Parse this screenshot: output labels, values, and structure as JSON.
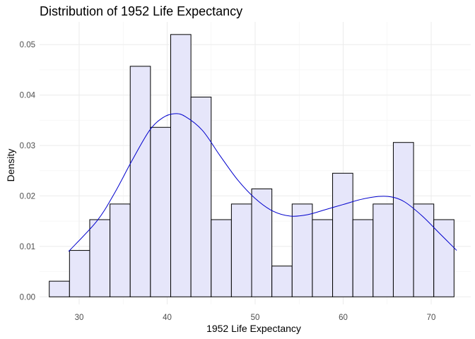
{
  "chart_data": {
    "type": "histogram",
    "title": "Distribution of 1952 Life Expectancy",
    "xlabel": "1952 Life Expectancy",
    "ylabel": "Density",
    "xlim": [
      25.5,
      74.5
    ],
    "ylim": [
      -0.0015,
      0.0545
    ],
    "x_ticks": [
      30,
      40,
      50,
      60,
      70
    ],
    "y_ticks": [
      0.0,
      0.01,
      0.02,
      0.03,
      0.04,
      0.05
    ],
    "y_tick_labels": [
      "0.00",
      "0.01",
      "0.02",
      "0.03",
      "0.04",
      "0.05"
    ],
    "grid": true,
    "bins": [
      {
        "x0": 26.6,
        "x1": 28.9,
        "density": 0.0031
      },
      {
        "x0": 28.9,
        "x1": 31.2,
        "density": 0.0092
      },
      {
        "x0": 31.2,
        "x1": 33.5,
        "density": 0.0153
      },
      {
        "x0": 33.5,
        "x1": 35.8,
        "density": 0.0184
      },
      {
        "x0": 35.8,
        "x1": 38.1,
        "density": 0.0457
      },
      {
        "x0": 38.1,
        "x1": 40.4,
        "density": 0.0336
      },
      {
        "x0": 40.4,
        "x1": 42.7,
        "density": 0.052
      },
      {
        "x0": 42.7,
        "x1": 45.0,
        "density": 0.0396
      },
      {
        "x0": 45.0,
        "x1": 47.3,
        "density": 0.0153
      },
      {
        "x0": 47.3,
        "x1": 49.6,
        "density": 0.0184
      },
      {
        "x0": 49.6,
        "x1": 51.9,
        "density": 0.0214
      },
      {
        "x0": 51.9,
        "x1": 54.2,
        "density": 0.0061
      },
      {
        "x0": 54.2,
        "x1": 56.5,
        "density": 0.0184
      },
      {
        "x0": 56.5,
        "x1": 58.8,
        "density": 0.0153
      },
      {
        "x0": 58.8,
        "x1": 61.1,
        "density": 0.0245
      },
      {
        "x0": 61.1,
        "x1": 63.4,
        "density": 0.0153
      },
      {
        "x0": 63.4,
        "x1": 65.7,
        "density": 0.0184
      },
      {
        "x0": 65.7,
        "x1": 68.0,
        "density": 0.0306
      },
      {
        "x0": 68.0,
        "x1": 70.3,
        "density": 0.0184
      },
      {
        "x0": 70.3,
        "x1": 72.6,
        "density": 0.0153
      }
    ],
    "density_curve": [
      {
        "x": 28.8,
        "y": 0.009
      },
      {
        "x": 32.0,
        "y": 0.015
      },
      {
        "x": 34.0,
        "y": 0.0205
      },
      {
        "x": 36.0,
        "y": 0.027
      },
      {
        "x": 38.0,
        "y": 0.033
      },
      {
        "x": 39.5,
        "y": 0.0355
      },
      {
        "x": 40.8,
        "y": 0.0363
      },
      {
        "x": 42.0,
        "y": 0.0358
      },
      {
        "x": 44.0,
        "y": 0.033
      },
      {
        "x": 46.0,
        "y": 0.028
      },
      {
        "x": 48.0,
        "y": 0.0232
      },
      {
        "x": 50.0,
        "y": 0.0195
      },
      {
        "x": 52.0,
        "y": 0.017
      },
      {
        "x": 54.0,
        "y": 0.016
      },
      {
        "x": 56.0,
        "y": 0.0163
      },
      {
        "x": 58.0,
        "y": 0.0173
      },
      {
        "x": 60.0,
        "y": 0.0183
      },
      {
        "x": 62.0,
        "y": 0.0193
      },
      {
        "x": 64.0,
        "y": 0.0199
      },
      {
        "x": 65.5,
        "y": 0.0198
      },
      {
        "x": 67.0,
        "y": 0.0188
      },
      {
        "x": 69.0,
        "y": 0.016
      },
      {
        "x": 71.0,
        "y": 0.0125
      },
      {
        "x": 72.9,
        "y": 0.0092
      }
    ],
    "colors": {
      "bar_fill": "#e6e6fa",
      "bar_stroke": "#000000",
      "curve": "#0000cd",
      "grid_major": "#ebebeb",
      "grid_minor": "#f4f4f4",
      "tick_text": "#4d4d4d"
    }
  }
}
